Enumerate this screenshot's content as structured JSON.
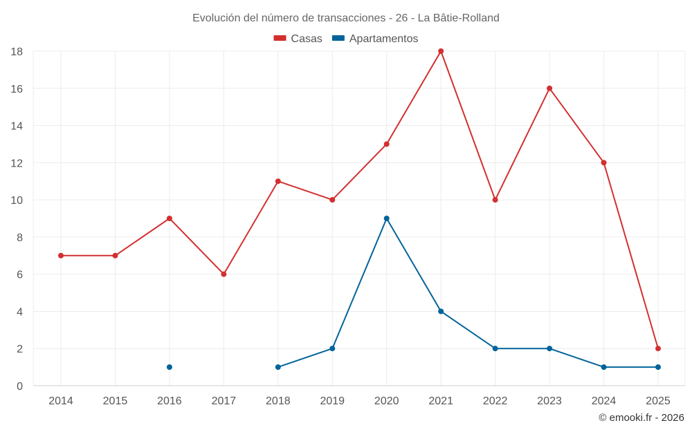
{
  "chart_data": {
    "type": "line",
    "title": "Evolución del número de transacciones - 26 - La Bâtie-Rolland",
    "categories": [
      "2014",
      "2015",
      "2016",
      "2017",
      "2018",
      "2019",
      "2020",
      "2021",
      "2022",
      "2023",
      "2024",
      "2025"
    ],
    "series": [
      {
        "name": "Casas",
        "color": "#d32f2f",
        "values": [
          7,
          7,
          9,
          6,
          11,
          10,
          13,
          18,
          10,
          16,
          12,
          2
        ]
      },
      {
        "name": "Apartamentos",
        "color": "#01639a",
        "values": [
          null,
          null,
          1,
          null,
          1,
          2,
          9,
          4,
          2,
          2,
          1,
          1
        ]
      }
    ],
    "yticks": [
      "0",
      "2",
      "4",
      "6",
      "8",
      "10",
      "12",
      "14",
      "16",
      "18"
    ],
    "ylim": [
      0,
      18
    ],
    "grid": true,
    "legend_position": "top-center"
  },
  "credit": "© emooki.fr - 2026"
}
